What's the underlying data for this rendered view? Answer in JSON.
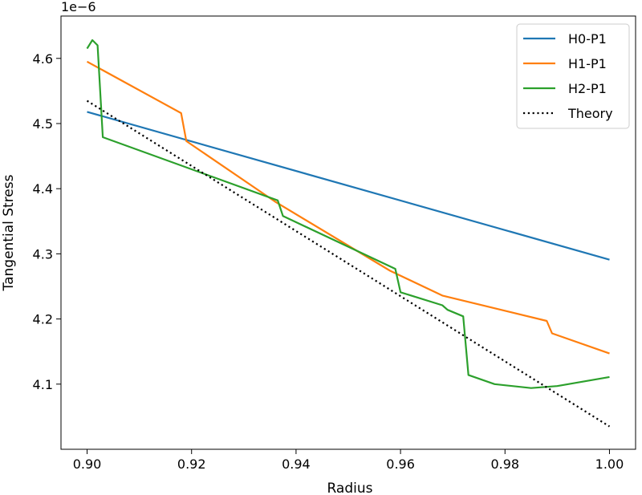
{
  "chart_data": {
    "type": "line",
    "xlabel": "Radius",
    "ylabel": "Tangential Stress",
    "y_multiplier": "1e−6",
    "xlim": [
      0.895,
      1.005
    ],
    "ylim": [
      4.0,
      4.665
    ],
    "xticks": [
      "0.90",
      "0.92",
      "0.94",
      "0.96",
      "0.98",
      "1.00"
    ],
    "yticks": [
      "4.1",
      "4.2",
      "4.3",
      "4.4",
      "4.5",
      "4.6"
    ],
    "legend_position": "top-right",
    "series": [
      {
        "name": "H0-P1",
        "color": "#1f77b4",
        "style": "solid",
        "x": [
          0.9,
          1.0
        ],
        "y": [
          4.518,
          4.291
        ]
      },
      {
        "name": "H1-P1",
        "color": "#ff7f0e",
        "style": "solid",
        "x": [
          0.9,
          0.918,
          0.919,
          0.936,
          0.958,
          0.968,
          0.988,
          0.989,
          1.0
        ],
        "y": [
          4.595,
          4.516,
          4.473,
          4.38,
          4.274,
          4.236,
          4.197,
          4.178,
          4.147
        ]
      },
      {
        "name": "H2-P1",
        "color": "#2ca02c",
        "style": "solid",
        "x": [
          0.9,
          0.901,
          0.902,
          0.903,
          0.9365,
          0.9375,
          0.959,
          0.96,
          0.968,
          0.969,
          0.972,
          0.973,
          0.978,
          0.985,
          0.99,
          1.0
        ],
        "y": [
          4.615,
          4.628,
          4.62,
          4.479,
          4.382,
          4.358,
          4.277,
          4.241,
          4.221,
          4.214,
          4.204,
          4.114,
          4.1,
          4.094,
          4.097,
          4.111
        ]
      },
      {
        "name": "Theory",
        "color": "#000000",
        "style": "dotted",
        "x": [
          0.9,
          1.0
        ],
        "y": [
          4.535,
          4.035
        ]
      }
    ]
  }
}
